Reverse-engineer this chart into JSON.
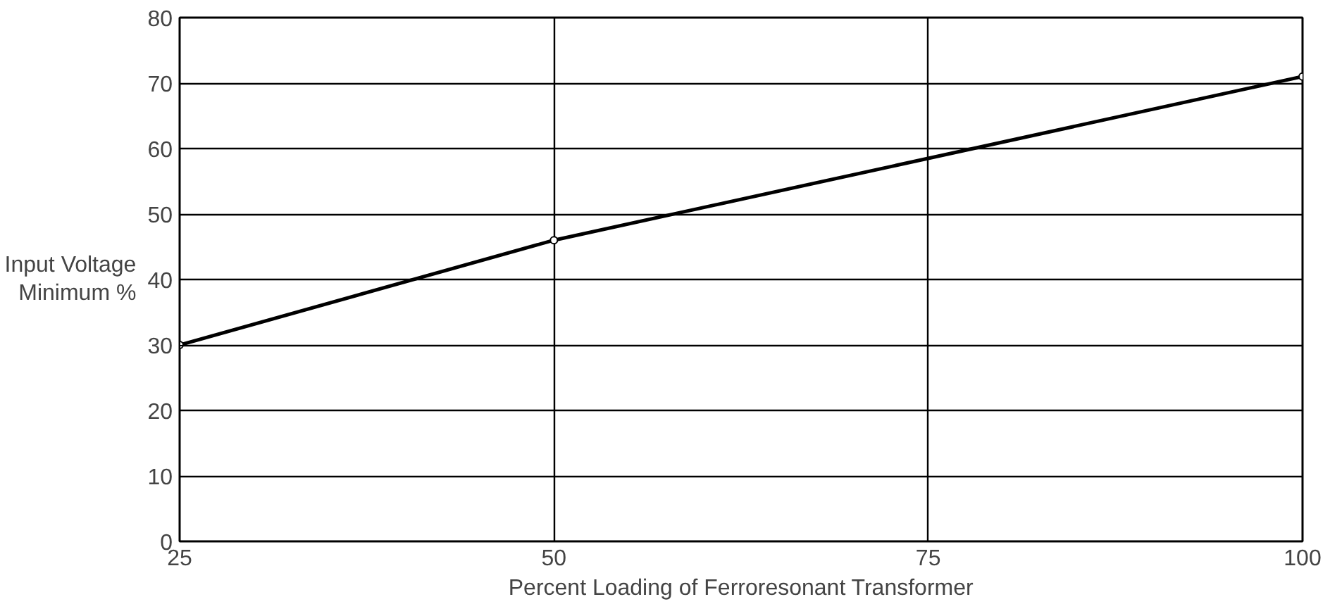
{
  "chart_data": {
    "type": "line",
    "xlabel": "Percent Loading of Ferroresonant Transformer",
    "ylabel": "Input Voltage\nMinimum %",
    "x": [
      25,
      50,
      100
    ],
    "series": [
      {
        "color": "#000000",
        "values": [
          30,
          46,
          71
        ]
      }
    ],
    "xlim": [
      25,
      100
    ],
    "xticks": [
      25,
      50,
      75,
      100
    ],
    "ylim": [
      0,
      80
    ],
    "yticks": [
      0,
      10,
      20,
      30,
      40,
      50,
      60,
      70,
      80
    ],
    "grid": true,
    "marker": "circle",
    "line_style": "solid"
  }
}
